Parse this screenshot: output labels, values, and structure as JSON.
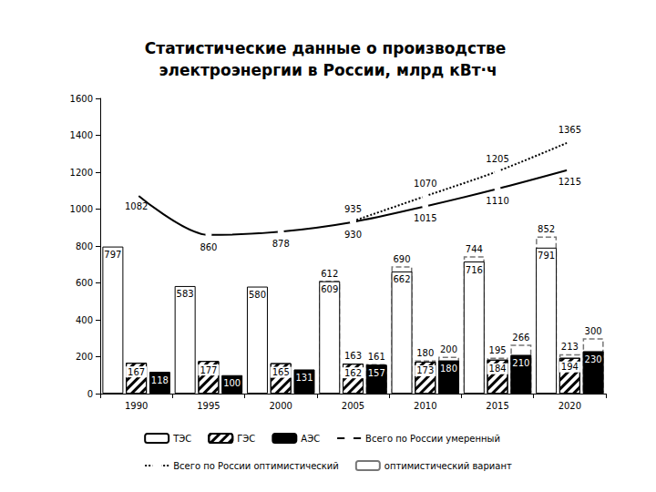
{
  "chart_data": {
    "type": "bar",
    "title": "Статистические данные о производстве электроэнергии в России, млрд кВт·ч",
    "categories": [
      "1990",
      "1995",
      "2000",
      "2005",
      "2010",
      "2015",
      "2020"
    ],
    "ylim": [
      0,
      1600
    ],
    "yticks": [
      0,
      200,
      400,
      600,
      800,
      1000,
      1200,
      1400,
      1600
    ],
    "grid": false,
    "legend": "bottom",
    "data_labels": true,
    "series": [
      {
        "name": "ТЭС",
        "type": "bar",
        "color": "#ffffff",
        "values": [
          797,
          583,
          580,
          609,
          662,
          716,
          791
        ]
      },
      {
        "name": "ГЭС",
        "type": "bar",
        "color": "#ffffff",
        "marker": "hatch",
        "values": [
          167,
          177,
          165,
          162,
          173,
          184,
          194
        ]
      },
      {
        "name": "АЭС",
        "type": "bar",
        "color": "#000000",
        "values": [
          118,
          100,
          131,
          157,
          180,
          210,
          230
        ]
      },
      {
        "name": "Всего по России умеренный",
        "type": "line",
        "color": "#000000",
        "line_style": "solid",
        "marker": "circle",
        "values": [
          1082,
          860,
          878,
          930,
          1015,
          1110,
          1215
        ]
      },
      {
        "name": "Всего по России оптимистический",
        "type": "line",
        "color": "#000000",
        "line_style": "dotted",
        "marker": "circle",
        "values": [
          null,
          null,
          null,
          935,
          1070,
          1205,
          1365
        ]
      },
      {
        "name": "оптимистический вариант",
        "type": "bar",
        "color": "#ffffff",
        "line_style": "dashed",
        "values": [
          null,
          null,
          null,
          612,
          690,
          744,
          852
        ]
      },
      {
        "name": "оптимистический вариант",
        "type": "bar",
        "color": "#ffffff",
        "line_style": "dashed",
        "values": [
          null,
          null,
          null,
          163,
          180,
          195,
          213
        ]
      },
      {
        "name": "оптимистический вариант",
        "type": "bar",
        "color": "#ffffff",
        "line_style": "dashed",
        "values": [
          null,
          null,
          null,
          161,
          200,
          266,
          300
        ]
      }
    ]
  }
}
